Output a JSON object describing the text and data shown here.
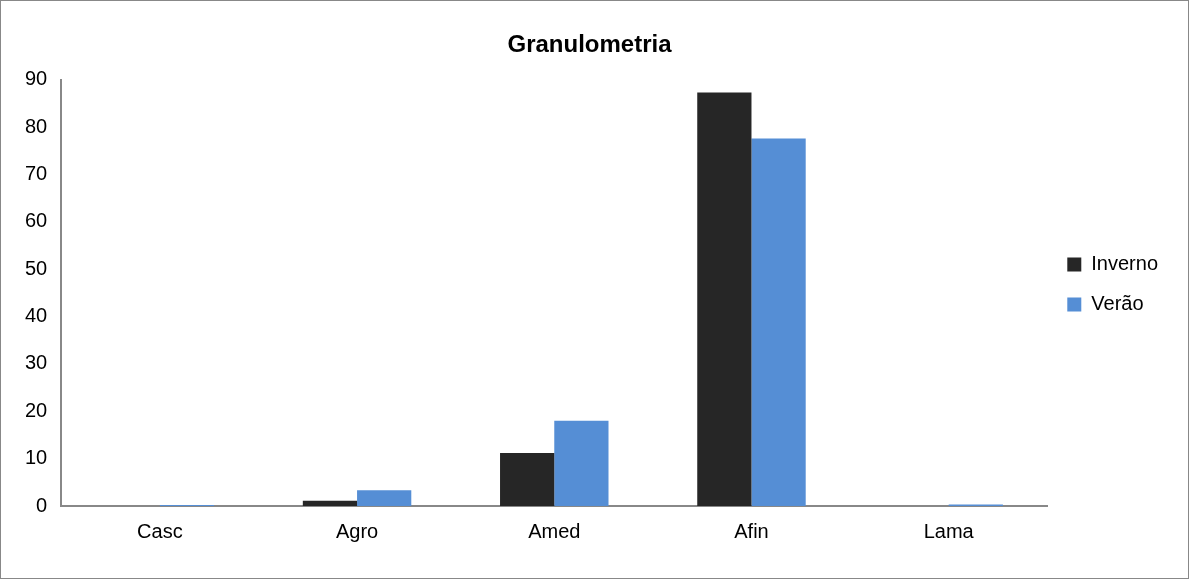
{
  "chart_data": {
    "type": "bar",
    "title": "Granulometria",
    "categories": [
      "Casc",
      "Agro",
      "Amed",
      "Afin",
      "Lama"
    ],
    "series": [
      {
        "name": "Inverno",
        "color": "#262626",
        "values": [
          0,
          1.1,
          11.2,
          87.3,
          0
        ]
      },
      {
        "name": "Verão",
        "color": "#558ed5",
        "values": [
          0.2,
          3.3,
          18,
          77.6,
          0.3
        ]
      }
    ],
    "ylim": [
      0,
      90
    ],
    "yticks": [
      0,
      10,
      20,
      30,
      40,
      50,
      60,
      70,
      80,
      90
    ],
    "grid": false,
    "legend": "right"
  }
}
